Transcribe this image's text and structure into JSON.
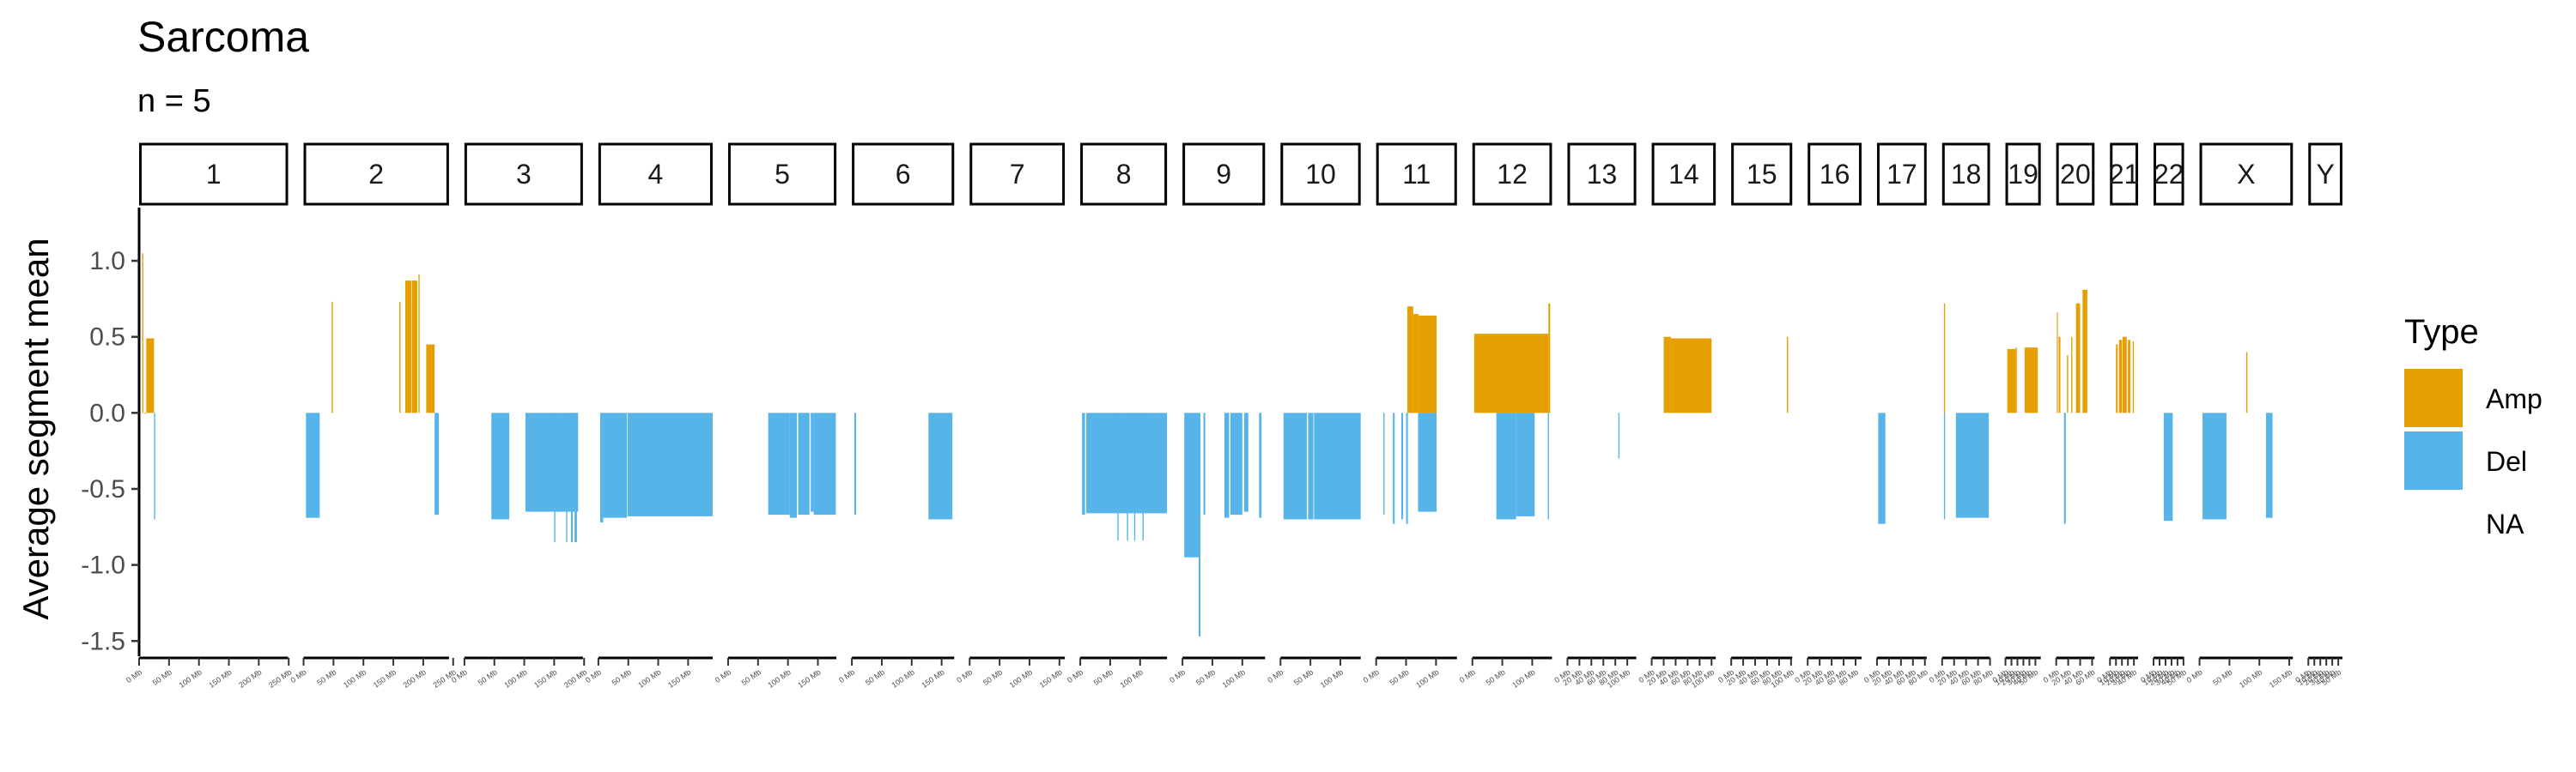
{
  "chart_data": {
    "type": "bar",
    "title": "Sarcoma",
    "subtitle": "n = 5",
    "ylabel": "Average segment mean",
    "xlabel": "",
    "ylim": [
      -1.6,
      1.35
    ],
    "yticks": [
      1.0,
      0.5,
      0.0,
      -0.5,
      -1.0,
      -1.5
    ],
    "ytick_labels": [
      "1.0",
      "0.5",
      "0.0",
      "-0.5",
      "-1.0",
      "-1.5"
    ],
    "colors": {
      "Amp": "#E69F00",
      "Del": "#56B4E9",
      "NA": "#ffffff"
    },
    "legend": {
      "title": "Type",
      "position": "right",
      "entries": [
        "Amp",
        "Del",
        "NA"
      ]
    },
    "panels": [
      {
        "label": "1",
        "length_mb": 249,
        "ticks": [
          "0 Mb",
          "50 Mb",
          "100 Mb",
          "150 Mb",
          "200 Mb",
          "250 Mb"
        ],
        "segments": [
          {
            "start": 5,
            "end": 7,
            "value": 1.05,
            "type": "Amp"
          },
          {
            "start": 8,
            "end": 12,
            "value": 0.0,
            "type": "Amp"
          },
          {
            "start": 12,
            "end": 25,
            "value": 0.49,
            "type": "Amp"
          },
          {
            "start": 25,
            "end": 27,
            "value": -0.7,
            "type": "Del"
          }
        ]
      },
      {
        "label": "2",
        "length_mb": 243,
        "ticks": [
          "0 Mb",
          "50 Mb",
          "100 Mb",
          "150 Mb",
          "200 Mb",
          "250 Mb"
        ],
        "segments": [
          {
            "start": 4,
            "end": 27,
            "value": -0.69,
            "type": "Del"
          },
          {
            "start": 47,
            "end": 49,
            "value": 0.73,
            "type": "Amp"
          },
          {
            "start": 160,
            "end": 162,
            "value": 0.73,
            "type": "Amp"
          },
          {
            "start": 170,
            "end": 180,
            "value": 0.87,
            "type": "Amp"
          },
          {
            "start": 181,
            "end": 190,
            "value": 0.87,
            "type": "Amp"
          },
          {
            "start": 192,
            "end": 194,
            "value": 0.91,
            "type": "Amp"
          },
          {
            "start": 205,
            "end": 219,
            "value": 0.45,
            "type": "Amp"
          },
          {
            "start": 219,
            "end": 226,
            "value": -0.67,
            "type": "Del"
          }
        ]
      },
      {
        "label": "3",
        "length_mb": 198,
        "ticks": [
          "0 Mb",
          "50 Mb",
          "100 Mb",
          "150 Mb",
          "200 Mb"
        ],
        "segments": [
          {
            "start": 45,
            "end": 75,
            "value": -0.7,
            "type": "Del"
          },
          {
            "start": 102,
            "end": 190,
            "value": -0.65,
            "type": "Del"
          },
          {
            "start": 150,
            "end": 152,
            "value": -0.85,
            "type": "Del"
          },
          {
            "start": 170,
            "end": 172,
            "value": -0.85,
            "type": "Del"
          },
          {
            "start": 178,
            "end": 181,
            "value": -0.85,
            "type": "Del"
          },
          {
            "start": 184,
            "end": 188,
            "value": -0.85,
            "type": "Del"
          }
        ]
      },
      {
        "label": "4",
        "length_mb": 191,
        "ticks": [
          "0 Mb",
          "50 Mb",
          "100 Mb",
          "150 Mb"
        ],
        "segments": [
          {
            "start": 3,
            "end": 8,
            "value": -0.72,
            "type": "Del"
          },
          {
            "start": 8,
            "end": 48,
            "value": -0.69,
            "type": "Del"
          },
          {
            "start": 49,
            "end": 191,
            "value": -0.68,
            "type": "Del"
          }
        ]
      },
      {
        "label": "5",
        "length_mb": 181,
        "ticks": [
          "0 Mb",
          "50 Mb",
          "100 Mb",
          "150 Mb"
        ],
        "segments": [
          {
            "start": 67,
            "end": 103,
            "value": -0.67,
            "type": "Del"
          },
          {
            "start": 103,
            "end": 115,
            "value": -0.69,
            "type": "Del"
          },
          {
            "start": 117,
            "end": 136,
            "value": -0.67,
            "type": "Del"
          },
          {
            "start": 138,
            "end": 143,
            "value": -0.65,
            "type": "Del"
          },
          {
            "start": 143,
            "end": 180,
            "value": -0.67,
            "type": "Del"
          }
        ]
      },
      {
        "label": "6",
        "length_mb": 171,
        "ticks": [
          "0 Mb",
          "50 Mb",
          "100 Mb",
          "150 Mb"
        ],
        "segments": [
          {
            "start": 4,
            "end": 7,
            "value": -0.67,
            "type": "Del"
          },
          {
            "start": 128,
            "end": 168,
            "value": -0.7,
            "type": "Del"
          }
        ]
      },
      {
        "label": "7",
        "length_mb": 159,
        "ticks": [
          "0 Mb",
          "50 Mb",
          "100 Mb",
          "150 Mb"
        ],
        "segments": []
      },
      {
        "label": "8",
        "length_mb": 145,
        "ticks": [
          "0 Mb",
          "50 Mb",
          "100 Mb"
        ],
        "segments": [
          {
            "start": 3,
            "end": 8,
            "value": -0.67,
            "type": "Del"
          },
          {
            "start": 10,
            "end": 145,
            "value": -0.66,
            "type": "Del"
          },
          {
            "start": 62,
            "end": 64,
            "value": -0.84,
            "type": "Del"
          },
          {
            "start": 78,
            "end": 80,
            "value": -0.84,
            "type": "Del"
          },
          {
            "start": 90,
            "end": 92,
            "value": -0.84,
            "type": "Del"
          },
          {
            "start": 104,
            "end": 106,
            "value": -0.84,
            "type": "Del"
          }
        ]
      },
      {
        "label": "9",
        "length_mb": 138,
        "ticks": [
          "0 Mb",
          "50 Mb",
          "100 Mb"
        ],
        "segments": [
          {
            "start": 3,
            "end": 27,
            "value": -0.95,
            "type": "Del"
          },
          {
            "start": 27,
            "end": 30,
            "value": -1.47,
            "type": "Del"
          },
          {
            "start": 35,
            "end": 38,
            "value": -0.67,
            "type": "Del"
          },
          {
            "start": 70,
            "end": 78,
            "value": -0.69,
            "type": "Del"
          },
          {
            "start": 80,
            "end": 100,
            "value": -0.67,
            "type": "Del"
          },
          {
            "start": 103,
            "end": 110,
            "value": -0.65,
            "type": "Del"
          },
          {
            "start": 128,
            "end": 132,
            "value": -0.69,
            "type": "Del"
          }
        ]
      },
      {
        "label": "10",
        "length_mb": 134,
        "ticks": [
          "0 Mb",
          "50 Mb",
          "100 Mb"
        ],
        "segments": [
          {
            "start": 5,
            "end": 44,
            "value": -0.7,
            "type": "Del"
          },
          {
            "start": 46,
            "end": 55,
            "value": -0.7,
            "type": "Del"
          },
          {
            "start": 56,
            "end": 134,
            "value": -0.7,
            "type": "Del"
          }
        ]
      },
      {
        "label": "11",
        "length_mb": 135,
        "ticks": [
          "0 Mb",
          "50 Mb",
          "100 Mb"
        ],
        "segments": [
          {
            "start": 12,
            "end": 14,
            "value": -0.67,
            "type": "Del"
          },
          {
            "start": 28,
            "end": 31,
            "value": -0.73,
            "type": "Del"
          },
          {
            "start": 42,
            "end": 45,
            "value": -0.7,
            "type": "Del"
          },
          {
            "start": 50,
            "end": 53,
            "value": -0.73,
            "type": "Del"
          },
          {
            "start": 52,
            "end": 62,
            "value": 0.7,
            "type": "Amp"
          },
          {
            "start": 62,
            "end": 71,
            "value": 0.65,
            "type": "Amp"
          },
          {
            "start": 71,
            "end": 101,
            "value": 0.64,
            "type": "Amp"
          },
          {
            "start": 70,
            "end": 101,
            "value": -0.65,
            "type": "Del"
          }
        ]
      },
      {
        "label": "12",
        "length_mb": 133,
        "ticks": [
          "0 Mb",
          "50 Mb",
          "100 Mb"
        ],
        "segments": [
          {
            "start": 3,
            "end": 127,
            "value": 0.52,
            "type": "Amp"
          },
          {
            "start": 127,
            "end": 130,
            "value": 0.72,
            "type": "Amp"
          },
          {
            "start": 40,
            "end": 73,
            "value": -0.7,
            "type": "Del"
          },
          {
            "start": 73,
            "end": 104,
            "value": -0.68,
            "type": "Del"
          },
          {
            "start": 126,
            "end": 128,
            "value": -0.7,
            "type": "Del"
          }
        ]
      },
      {
        "label": "13",
        "length_mb": 115,
        "ticks": [
          "0 Mb",
          "20 Mb",
          "40 Mb",
          "60 Mb",
          "80 Mb",
          "100 Mb"
        ],
        "segments": [
          {
            "start": 85,
            "end": 87,
            "value": -0.3,
            "type": "Del"
          }
        ]
      },
      {
        "label": "14",
        "length_mb": 107,
        "ticks": [
          "0 Mb",
          "20 Mb",
          "40 Mb",
          "60 Mb",
          "80 Mb",
          "100 Mb"
        ],
        "segments": [
          {
            "start": 20,
            "end": 32,
            "value": 0.5,
            "type": "Amp"
          },
          {
            "start": 32,
            "end": 100,
            "value": 0.49,
            "type": "Amp"
          }
        ]
      },
      {
        "label": "15",
        "length_mb": 102,
        "ticks": [
          "0 Mb",
          "20 Mb",
          "40 Mb",
          "60 Mb",
          "80 Mb",
          "100 Mb"
        ],
        "segments": [
          {
            "start": 93,
            "end": 95,
            "value": 0.5,
            "type": "Amp"
          }
        ]
      },
      {
        "label": "16",
        "length_mb": 90,
        "ticks": [
          "0 Mb",
          "20 Mb",
          "40 Mb",
          "60 Mb",
          "80 Mb"
        ],
        "segments": []
      },
      {
        "label": "17",
        "length_mb": 83,
        "ticks": [
          "0 Mb",
          "20 Mb",
          "40 Mb",
          "60 Mb",
          "80 Mb"
        ],
        "segments": [
          {
            "start": 2,
            "end": 14,
            "value": -0.73,
            "type": "Del"
          }
        ]
      },
      {
        "label": "18",
        "length_mb": 80,
        "ticks": [
          "0 Mb",
          "20 Mb",
          "40 Mb",
          "60 Mb",
          "80 Mb"
        ],
        "segments": [
          {
            "start": 3,
            "end": 5,
            "value": 0.72,
            "type": "Amp"
          },
          {
            "start": 3,
            "end": 5,
            "value": -0.7,
            "type": "Del"
          },
          {
            "start": 23,
            "end": 78,
            "value": -0.69,
            "type": "Del"
          }
        ]
      },
      {
        "label": "19",
        "length_mb": 59,
        "ticks": [
          "0 Mb",
          "10 Mb",
          "20 Mb",
          "30 Mb",
          "40 Mb",
          "50 Mb"
        ],
        "segments": [
          {
            "start": 3,
            "end": 17,
            "value": 0.42,
            "type": "Amp"
          },
          {
            "start": 17,
            "end": 19,
            "value": 0.43,
            "type": "Amp"
          },
          {
            "start": 32,
            "end": 54,
            "value": 0.43,
            "type": "Amp"
          }
        ]
      },
      {
        "label": "20",
        "length_mb": 64,
        "ticks": [
          "0 Mb",
          "20 Mb",
          "40 Mb",
          "60 Mb"
        ],
        "segments": [
          {
            "start": 1,
            "end": 2,
            "value": 0.66,
            "type": "Amp"
          },
          {
            "start": 4,
            "end": 7,
            "value": 0.5,
            "type": "Amp"
          },
          {
            "start": 13,
            "end": 16,
            "value": -0.73,
            "type": "Del"
          },
          {
            "start": 18,
            "end": 20,
            "value": 0.38,
            "type": "Amp"
          },
          {
            "start": 25,
            "end": 27,
            "value": 0.5,
            "type": "Amp"
          },
          {
            "start": 33,
            "end": 40,
            "value": 0.72,
            "type": "Amp"
          },
          {
            "start": 44,
            "end": 52,
            "value": 0.81,
            "type": "Amp"
          }
        ]
      },
      {
        "label": "21",
        "length_mb": 47,
        "ticks": [
          "0 Mb",
          "10 Mb",
          "20 Mb",
          "30 Mb",
          "40 Mb"
        ],
        "segments": [
          {
            "start": 10,
            "end": 13,
            "value": 0.45,
            "type": "Amp"
          },
          {
            "start": 15,
            "end": 20,
            "value": 0.48,
            "type": "Amp"
          },
          {
            "start": 21,
            "end": 28,
            "value": 0.5,
            "type": "Amp"
          },
          {
            "start": 30,
            "end": 34,
            "value": 0.48,
            "type": "Amp"
          },
          {
            "start": 38,
            "end": 40,
            "value": 0.47,
            "type": "Amp"
          }
        ]
      },
      {
        "label": "22",
        "length_mb": 51,
        "ticks": [
          "0 Mb",
          "10 Mb",
          "20 Mb",
          "30 Mb",
          "40 Mb",
          "50 Mb"
        ],
        "segments": [
          {
            "start": 17,
            "end": 32,
            "value": -0.71,
            "type": "Del"
          }
        ]
      },
      {
        "label": "X",
        "length_mb": 156,
        "ticks": [
          "0 Mb",
          "50 Mb",
          "100 Mb",
          "150 Mb"
        ],
        "segments": [
          {
            "start": 5,
            "end": 45,
            "value": -0.7,
            "type": "Del"
          },
          {
            "start": 78,
            "end": 80,
            "value": 0.4,
            "type": "Amp"
          },
          {
            "start": 111,
            "end": 122,
            "value": -0.69,
            "type": "Del"
          }
        ]
      },
      {
        "label": "Y",
        "length_mb": 57,
        "ticks": [
          "0 Mb",
          "10 Mb",
          "20 Mb",
          "30 Mb",
          "40 Mb",
          "50 Mb"
        ],
        "segments": []
      }
    ]
  }
}
